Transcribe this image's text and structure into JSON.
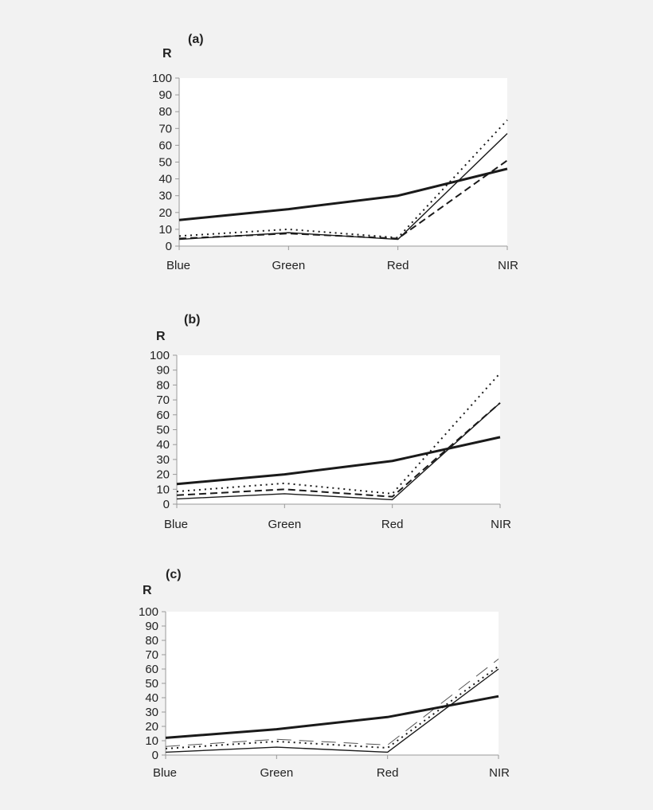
{
  "chart_data": [
    {
      "type": "line",
      "title": "(a)",
      "ylabel": "R",
      "categories": [
        "Blue",
        "Green",
        "Red",
        "NIR"
      ],
      "ylim": [
        0,
        100
      ],
      "yticks": [
        "0",
        "10",
        "20",
        "30",
        "40",
        "50",
        "60",
        "70",
        "80",
        "90",
        "100"
      ],
      "series": [
        {
          "name": "thick-solid",
          "style": "thick",
          "values": [
            15.5,
            22,
            30,
            46
          ]
        },
        {
          "name": "thin-solid",
          "style": "solid",
          "values": [
            4,
            8,
            4,
            67
          ]
        },
        {
          "name": "dotted",
          "style": "dotted",
          "values": [
            6,
            10,
            5,
            75
          ]
        },
        {
          "name": "dashed",
          "style": "dashed",
          "values": [
            4.5,
            7.5,
            4.5,
            51
          ]
        }
      ]
    },
    {
      "type": "line",
      "title": "(b)",
      "ylabel": "R",
      "categories": [
        "Blue",
        "Green",
        "Red",
        "NIR"
      ],
      "ylim": [
        0,
        100
      ],
      "yticks": [
        "0",
        "10",
        "20",
        "30",
        "40",
        "50",
        "60",
        "70",
        "80",
        "90",
        "100"
      ],
      "series": [
        {
          "name": "thick-solid",
          "style": "thick",
          "values": [
            13.5,
            20,
            29,
            45
          ]
        },
        {
          "name": "thin-solid",
          "style": "solid",
          "values": [
            3.5,
            7,
            3,
            68
          ]
        },
        {
          "name": "dotted",
          "style": "dotted",
          "values": [
            8.5,
            14,
            7,
            88
          ]
        },
        {
          "name": "dashed",
          "style": "dashed",
          "values": [
            6,
            10,
            5,
            68
          ]
        }
      ]
    },
    {
      "type": "line",
      "title": "(c)",
      "ylabel": "R",
      "categories": [
        "Blue",
        "Green",
        "Red",
        "NIR"
      ],
      "ylim": [
        0,
        100
      ],
      "yticks": [
        "0",
        "10",
        "20",
        "30",
        "40",
        "50",
        "60",
        "70",
        "80",
        "90",
        "100"
      ],
      "series": [
        {
          "name": "thick-solid",
          "style": "thick",
          "values": [
            12,
            18,
            26.5,
            41
          ]
        },
        {
          "name": "thin-solid",
          "style": "solid",
          "values": [
            2,
            5.5,
            2,
            60
          ]
        },
        {
          "name": "dotted",
          "style": "dotted",
          "values": [
            4.5,
            9.5,
            5,
            62
          ]
        },
        {
          "name": "long-dashed-thin",
          "style": "longdash",
          "values": [
            6,
            11,
            7,
            67
          ]
        }
      ]
    }
  ]
}
